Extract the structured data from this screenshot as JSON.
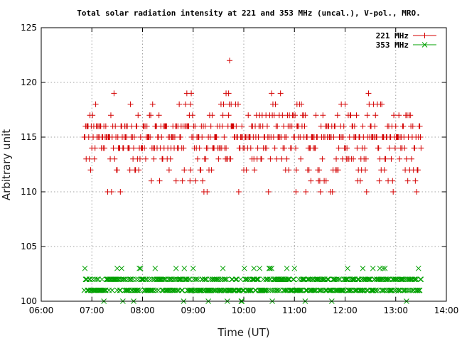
{
  "chart_data": {
    "type": "scatter",
    "title": "Total solar radiation intensity at 221 and 353 MHz (uncal.), V-pol., MRO.",
    "xlabel": "Time (UT)",
    "ylabel": "Arbitrary unit",
    "xlim": [
      6,
      14
    ],
    "ylim": [
      100,
      125
    ],
    "x_ticks": [
      "06:00",
      "07:00",
      "08:00",
      "09:00",
      "10:00",
      "11:00",
      "12:00",
      "13:00",
      "14:00"
    ],
    "y_ticks": [
      "100",
      "105",
      "110",
      "115",
      "120",
      "125"
    ],
    "grid": true,
    "legend": "top-right",
    "time_range": [
      6.85,
      13.5
    ],
    "colors": {
      "221": "#d40000",
      "353": "#00a000"
    },
    "series": [
      {
        "name": "221 MHz",
        "marker": "plus",
        "values": [
          110,
          111,
          112,
          113,
          114,
          115,
          116,
          117,
          118,
          119,
          122
        ],
        "frequency_weights": [
          1,
          2,
          3,
          5,
          9,
          12,
          9,
          4,
          2,
          1,
          0
        ],
        "peak_points": [
          {
            "x": 9.72,
            "y": 122
          },
          {
            "x": 9.65,
            "y": 119
          },
          {
            "x": 9.7,
            "y": 119
          },
          {
            "x": 8.95,
            "y": 118
          },
          {
            "x": 9.6,
            "y": 118
          },
          {
            "x": 9.75,
            "y": 118
          },
          {
            "x": 11.05,
            "y": 118
          },
          {
            "x": 11.03,
            "y": 110
          }
        ]
      },
      {
        "name": "353 MHz",
        "marker": "cross",
        "values": [
          100,
          101,
          102,
          103
        ],
        "frequency_weights": [
          0.4,
          10,
          10,
          0.8
        ],
        "sparse_points": [
          {
            "x": 7.5,
            "y": 103
          },
          {
            "x": 10.2,
            "y": 103
          },
          {
            "x": 10.52,
            "y": 103
          },
          {
            "x": 10.55,
            "y": 103
          },
          {
            "x": 10.85,
            "y": 103
          },
          {
            "x": 12.05,
            "y": 103
          },
          {
            "x": 12.35,
            "y": 103
          },
          {
            "x": 12.55,
            "y": 103
          },
          {
            "x": 12.75,
            "y": 103
          },
          {
            "x": 9.3,
            "y": 100
          },
          {
            "x": 9.95,
            "y": 100
          }
        ]
      }
    ]
  }
}
